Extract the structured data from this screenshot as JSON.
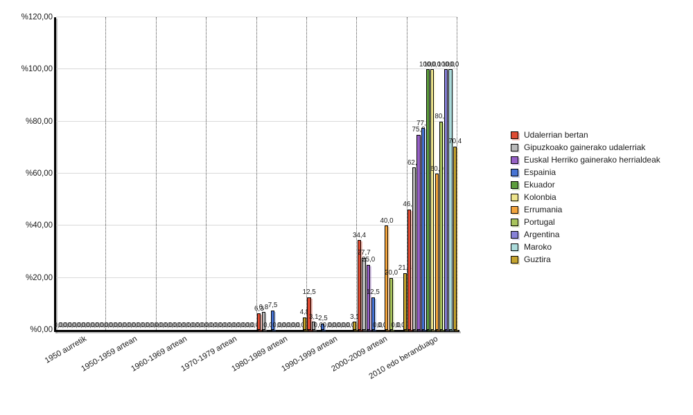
{
  "chart_data": {
    "type": "bar",
    "title": "",
    "categories": [
      "1950 aurretik",
      "1950-1959 artean",
      "1960-1969 artean",
      "1970-1979 artean",
      "1980-1989 artean",
      "1990-1999 artean",
      "2000-2009 artean",
      "2010 edo beranduago"
    ],
    "series": [
      {
        "name": "Udalerrian bertan",
        "color": "#df4b32",
        "values": [
          0,
          0,
          0,
          0,
          6.3,
          12.5,
          34.4,
          46.3
        ]
      },
      {
        "name": "Gipuzkoako gainerako udalerriak",
        "color": "#b9b9b9",
        "values": [
          0,
          0,
          0,
          0,
          6.8,
          3.1,
          27.7,
          62.3
        ]
      },
      {
        "name": "Euskal Herriko gainerako herrialdeak",
        "color": "#9661c6",
        "values": [
          0,
          0,
          0,
          0,
          0,
          0,
          25.0,
          75.0
        ]
      },
      {
        "name": "Espainia",
        "color": "#4573d5",
        "values": [
          0,
          0,
          0,
          0,
          7.5,
          2.5,
          12.5,
          77.5
        ]
      },
      {
        "name": "Ekuador",
        "color": "#5c9e3d",
        "values": [
          0,
          0,
          0,
          0,
          0,
          0,
          0,
          100.0
        ]
      },
      {
        "name": "Kolonbia",
        "color": "#ede48c",
        "values": [
          0,
          0,
          0,
          0,
          0,
          0,
          0,
          100.0
        ]
      },
      {
        "name": "Errumania",
        "color": "#f3a43c",
        "values": [
          0,
          0,
          0,
          0,
          0,
          0,
          40.0,
          60.0
        ]
      },
      {
        "name": "Portugal",
        "color": "#a8c45c",
        "values": [
          0,
          0,
          0,
          0,
          0,
          0,
          20.0,
          80.0
        ]
      },
      {
        "name": "Argentina",
        "color": "#8680d8",
        "values": [
          0,
          0,
          0,
          0,
          0,
          0,
          0,
          100.0
        ]
      },
      {
        "name": "Maroko",
        "color": "#abdbdb",
        "values": [
          0,
          0,
          0,
          0,
          0,
          0,
          0,
          100.0
        ]
      },
      {
        "name": "Guztira",
        "color": "#c5a42e",
        "values": [
          0,
          0,
          0,
          0,
          4.8,
          3.1,
          21.8,
          70.4
        ]
      }
    ],
    "y_axis": {
      "min": 0,
      "max": 120,
      "ticks": [
        {
          "value": 0,
          "label": "%0,00"
        },
        {
          "value": 20,
          "label": "%20,00"
        },
        {
          "value": 40,
          "label": "%40,00"
        },
        {
          "value": 60,
          "label": "%60,00"
        },
        {
          "value": 80,
          "label": "%80,00"
        },
        {
          "value": 100,
          "label": "%100,00"
        },
        {
          "value": 120,
          "label": "%120,00"
        }
      ]
    },
    "value_labels": {
      "decimal_separator": ",",
      "decimals": 1,
      "shown_on_every_bar": true
    },
    "legend": {
      "position": "right"
    },
    "grid": {
      "horizontal": true,
      "vertical_dotted_separators": true
    },
    "style": {
      "background": "#ffffff",
      "axis_color": "#000000",
      "gridline_color": "#d9d9d9",
      "separator_color": "#4a4a4a",
      "text_color": "#1a1a1a"
    }
  }
}
